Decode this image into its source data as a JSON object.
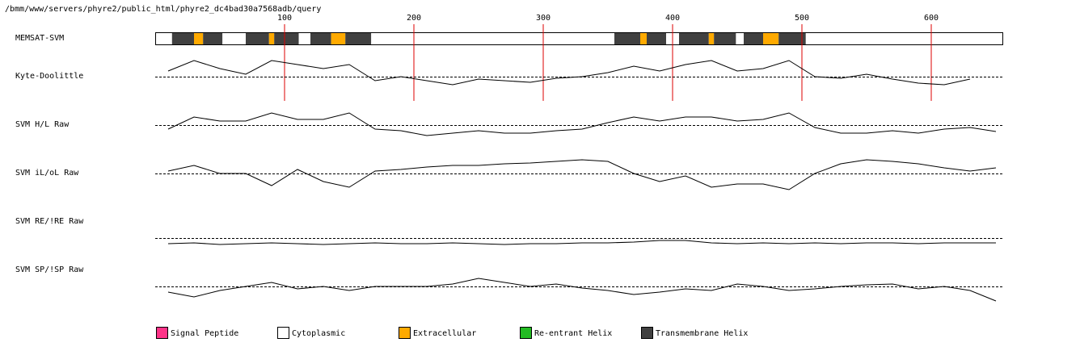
{
  "header": {
    "path": "/bmm/www/servers/phyre2/public_html/phyre2_dc4bad30a7568adb/query"
  },
  "chart_data": {
    "type": "line",
    "xlim": [
      0,
      655
    ],
    "xticks": [
      100,
      200,
      300,
      400,
      500,
      600
    ],
    "ylim": [
      -1.5,
      1.5
    ],
    "tick_color": "#dd0000",
    "topology": {
      "name": "MEMSAT-SVM",
      "segments": [
        {
          "start": 1,
          "end": 13,
          "color": "#ffffff"
        },
        {
          "start": 14,
          "end": 30,
          "color": "#404040"
        },
        {
          "start": 31,
          "end": 37,
          "color": "#ffaa00"
        },
        {
          "start": 38,
          "end": 52,
          "color": "#404040"
        },
        {
          "start": 53,
          "end": 70,
          "color": "#ffffff"
        },
        {
          "start": 71,
          "end": 88,
          "color": "#404040"
        },
        {
          "start": 89,
          "end": 92,
          "color": "#ffaa00"
        },
        {
          "start": 93,
          "end": 111,
          "color": "#404040"
        },
        {
          "start": 112,
          "end": 120,
          "color": "#ffffff"
        },
        {
          "start": 121,
          "end": 136,
          "color": "#404040"
        },
        {
          "start": 137,
          "end": 147,
          "color": "#ffaa00"
        },
        {
          "start": 148,
          "end": 167,
          "color": "#404040"
        },
        {
          "start": 168,
          "end": 355,
          "color": "#ffffff"
        },
        {
          "start": 356,
          "end": 375,
          "color": "#404040"
        },
        {
          "start": 376,
          "end": 380,
          "color": "#ffaa00"
        },
        {
          "start": 381,
          "end": 395,
          "color": "#404040"
        },
        {
          "start": 396,
          "end": 405,
          "color": "#ffffff"
        },
        {
          "start": 406,
          "end": 428,
          "color": "#404040"
        },
        {
          "start": 429,
          "end": 432,
          "color": "#ffaa00"
        },
        {
          "start": 433,
          "end": 449,
          "color": "#404040"
        },
        {
          "start": 450,
          "end": 455,
          "color": "#ffffff"
        },
        {
          "start": 456,
          "end": 470,
          "color": "#404040"
        },
        {
          "start": 471,
          "end": 482,
          "color": "#ffaa00"
        },
        {
          "start": 483,
          "end": 503,
          "color": "#404040"
        },
        {
          "start": 504,
          "end": 655,
          "color": "#ffffff"
        }
      ]
    },
    "x": [
      10,
      30,
      50,
      70,
      90,
      110,
      130,
      150,
      170,
      190,
      210,
      230,
      250,
      270,
      290,
      310,
      330,
      350,
      370,
      390,
      410,
      430,
      450,
      470,
      490,
      510,
      530,
      550,
      570,
      590,
      610,
      630,
      650
    ],
    "series": [
      {
        "name": "Kyte-Doolittle",
        "color": "#000000",
        "values": [
          0.35,
          1.0,
          0.5,
          0.15,
          1.0,
          0.75,
          0.5,
          0.75,
          -0.25,
          0,
          -0.25,
          -0.5,
          -0.15,
          -0.25,
          -0.35,
          -0.1,
          0,
          0.25,
          0.65,
          0.35,
          0.75,
          1.0,
          0.35,
          0.5,
          1.0,
          0,
          -0.1,
          0.15,
          -0.15,
          -0.4,
          -0.5,
          -0.15,
          null
        ]
      },
      {
        "name": "SVM H/L Raw",
        "color": "#000000",
        "values": [
          -0.25,
          0.5,
          0.25,
          0.25,
          0.75,
          0.35,
          0.35,
          0.75,
          -0.25,
          -0.35,
          -0.65,
          -0.5,
          -0.35,
          -0.5,
          -0.5,
          -0.35,
          -0.25,
          0.15,
          0.5,
          0.25,
          0.5,
          0.5,
          0.25,
          0.35,
          0.75,
          -0.15,
          -0.5,
          -0.5,
          -0.35,
          -0.5,
          -0.25,
          -0.15,
          -0.4
        ]
      },
      {
        "name": "SVM iL/oL Raw",
        "color": "#000000",
        "values": [
          0.15,
          0.5,
          0,
          0,
          -0.75,
          0.25,
          -0.5,
          -0.85,
          0.15,
          0.25,
          0.4,
          0.5,
          0.5,
          0.6,
          0.65,
          0.75,
          0.85,
          0.75,
          0,
          -0.5,
          -0.15,
          -0.85,
          -0.65,
          -0.65,
          -1.0,
          0,
          0.6,
          0.85,
          0.75,
          0.6,
          0.35,
          0.15,
          0.35
        ]
      },
      {
        "name": "SVM RE/!RE Raw",
        "color": "#000000",
        "values": [
          -0.35,
          -0.3,
          -0.4,
          -0.35,
          -0.3,
          -0.35,
          -0.4,
          -0.35,
          -0.3,
          -0.35,
          -0.35,
          -0.3,
          -0.35,
          -0.4,
          -0.35,
          -0.35,
          -0.3,
          -0.3,
          -0.25,
          -0.15,
          -0.15,
          -0.3,
          -0.35,
          -0.3,
          -0.35,
          -0.3,
          -0.35,
          -0.3,
          -0.3,
          -0.35,
          -0.3,
          -0.3,
          -0.3
        ]
      },
      {
        "name": "SVM SP/!SP Raw",
        "color": "#000000",
        "values": [
          -0.35,
          -0.65,
          -0.25,
          0,
          0.25,
          -0.15,
          0,
          -0.25,
          0,
          0,
          0,
          0.15,
          0.5,
          0.25,
          0,
          0.15,
          -0.1,
          -0.25,
          -0.5,
          -0.35,
          -0.15,
          -0.25,
          0.15,
          0,
          -0.25,
          -0.15,
          0,
          0.1,
          0.15,
          -0.15,
          0,
          -0.25,
          -0.9
        ]
      }
    ],
    "legend": [
      {
        "name": "Signal Peptide",
        "color": "#ff3388"
      },
      {
        "name": "Cytoplasmic",
        "color": "#ffffff"
      },
      {
        "name": "Extracellular",
        "color": "#ffaa00"
      },
      {
        "name": "Re-entrant Helix",
        "color": "#22bb22"
      },
      {
        "name": "Transmembrane Helix",
        "color": "#404040"
      }
    ]
  }
}
